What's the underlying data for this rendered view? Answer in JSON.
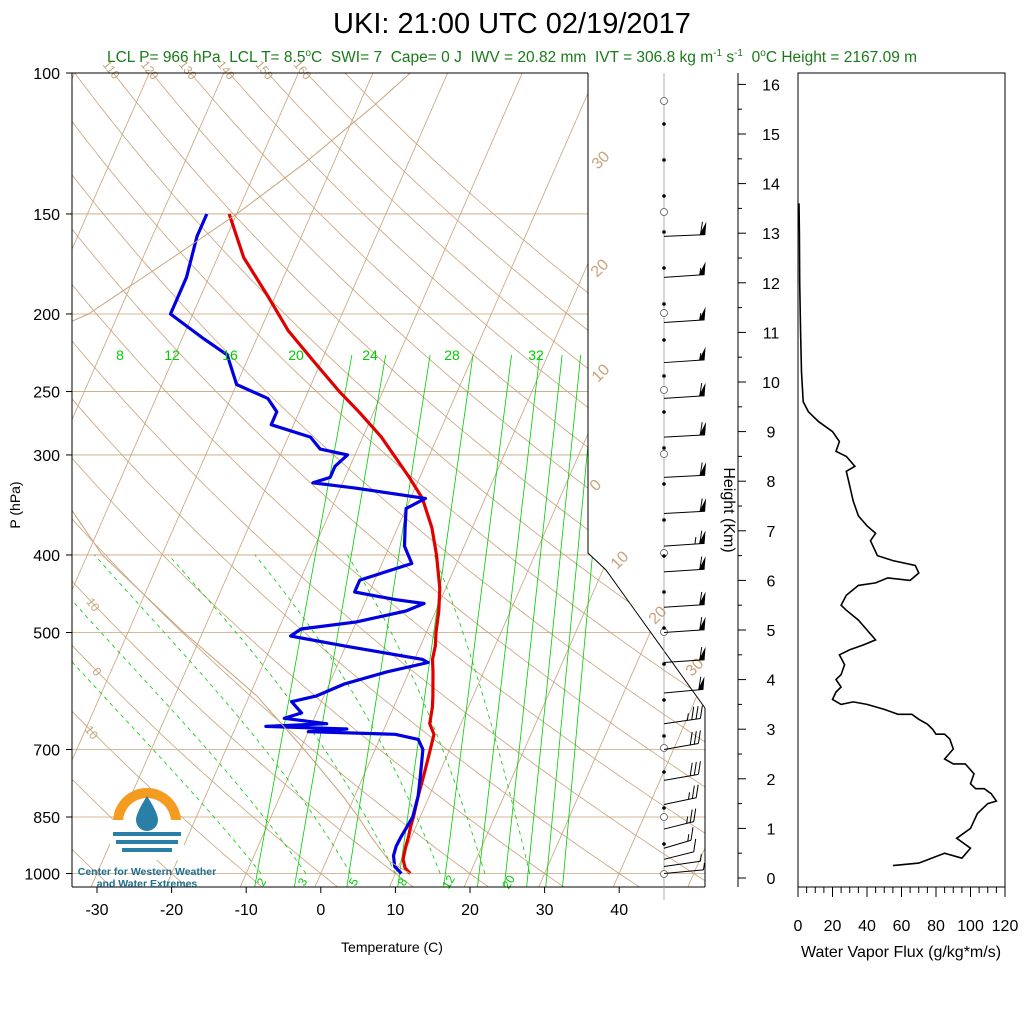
{
  "header": {
    "title": "UKI: 21:00 UTC 02/19/2017",
    "subtitle_parts": [
      "LCL P= 966 hPa",
      "LCL T= 8.5",
      "o",
      "C",
      "SWI= 7",
      "Cape= 0 J",
      "IWV = 20.82 mm",
      "IVT = 306.8 kg m",
      "-1",
      " s",
      "-1",
      "0",
      "o",
      "C Height = 2167.09 m"
    ]
  },
  "logo": {
    "line1": "Center for Western Weather",
    "line2": "and Water Extremes",
    "colors": {
      "sun": "#f39c1f",
      "water": "#2a7fa6"
    }
  },
  "colors": {
    "temperature": "#e00000",
    "dewpoint": "#0000e0",
    "dry_adiabat": "#c8a27a",
    "isotherm": "#c8a27a",
    "mixing_ratio": "#00cc00",
    "parcel": "#c8a27a",
    "subtitle": "#1a7a1a",
    "flux": "#000000"
  },
  "chart_data": [
    {
      "type": "line",
      "name": "skew-t",
      "xlabel": "Temperature (C)",
      "ylabel": "P (hPa)",
      "x_ticks": [
        -30,
        -20,
        -10,
        0,
        10,
        20,
        30,
        40
      ],
      "y_ticks": [
        100,
        150,
        200,
        250,
        300,
        400,
        500,
        700,
        850,
        1000
      ],
      "xlim": [
        -33,
        45
      ],
      "ylim": [
        1050,
        100
      ],
      "y_scale": "log",
      "skew_degC_per_decade": 47,
      "dry_adiabat_labels": [
        "50",
        "60",
        "70",
        "80",
        "90",
        "100",
        "110",
        "120",
        "130",
        "140",
        "150",
        "160",
        "40",
        "30",
        "20",
        "10",
        "0",
        "10",
        "20"
      ],
      "dry_adiabat_temps_C": [
        50,
        60,
        70,
        80,
        90,
        100,
        110,
        120,
        130,
        140,
        150,
        160,
        40,
        30,
        20,
        10,
        0,
        -10,
        -20
      ],
      "isotherm_labels": [
        "30",
        "20",
        "10",
        "0",
        "10",
        "20",
        "30"
      ],
      "isotherm_label_temps": [
        30,
        20,
        10,
        0,
        -10,
        -20,
        -30
      ],
      "mixing_ratio_top_labels": [
        "8",
        "12",
        "16",
        "20",
        "24",
        "28",
        "32"
      ],
      "mixing_ratio_bottom_labels": [
        "2",
        "3",
        "5",
        "8",
        "12",
        "20"
      ],
      "mixing_ratio_values": [
        2,
        3,
        5,
        8,
        12,
        16,
        20,
        24,
        28,
        32
      ],
      "series": [
        {
          "name": "temperature",
          "points": [
            [
              1000,
              12
            ],
            [
              985,
              11
            ],
            [
              960,
              10.2
            ],
            [
              925,
              9.8
            ],
            [
              900,
              9.6
            ],
            [
              875,
              9.3
            ],
            [
              850,
              9.1
            ],
            [
              800,
              8.5
            ],
            [
              750,
              8.0
            ],
            [
              700,
              7.4
            ],
            [
              670,
              7.0
            ],
            [
              650,
              5.8
            ],
            [
              620,
              5.2
            ],
            [
              600,
              4.6
            ],
            [
              560,
              3.2
            ],
            [
              540,
              2.4
            ],
            [
              520,
              2.0
            ],
            [
              500,
              1.3
            ],
            [
              470,
              0.4
            ],
            [
              440,
              -0.8
            ],
            [
              400,
              -3.2
            ],
            [
              370,
              -5.4
            ],
            [
              340,
              -8.4
            ],
            [
              320,
              -11.4
            ],
            [
              300,
              -14.8
            ],
            [
              285,
              -17.5
            ],
            [
              265,
              -22
            ],
            [
              250,
              -25.8
            ],
            [
              230,
              -30.8
            ],
            [
              210,
              -36.2
            ],
            [
              190,
              -41
            ],
            [
              170,
              -46.5
            ],
            [
              150,
              -51
            ]
          ]
        },
        {
          "name": "dewpoint",
          "points": [
            [
              1000,
              10.8
            ],
            [
              980,
              9.5
            ],
            [
              950,
              8.7
            ],
            [
              925,
              8.5
            ],
            [
              900,
              8.6
            ],
            [
              875,
              8.8
            ],
            [
              850,
              9
            ],
            [
              800,
              8.5
            ],
            [
              750,
              7.5
            ],
            [
              700,
              6.4
            ],
            [
              680,
              5.2
            ],
            [
              670,
              1.8
            ],
            [
              665,
              -10
            ],
            [
              660,
              -5
            ],
            [
              655,
              -16
            ],
            [
              650,
              -8
            ],
            [
              640,
              -14
            ],
            [
              630,
              -12
            ],
            [
              610,
              -14
            ],
            [
              600,
              -11
            ],
            [
              580,
              -8
            ],
            [
              560,
              -3
            ],
            [
              545,
              2
            ],
            [
              540,
              1
            ],
            [
              520,
              -10
            ],
            [
              505,
              -18
            ],
            [
              495,
              -17
            ],
            [
              485,
              -10
            ],
            [
              470,
              -4
            ],
            [
              460,
              -2
            ],
            [
              455,
              -6
            ],
            [
              445,
              -12
            ],
            [
              430,
              -12
            ],
            [
              410,
              -6
            ],
            [
              390,
              -8
            ],
            [
              370,
              -9
            ],
            [
              350,
              -10
            ],
            [
              340,
              -8
            ],
            [
              330,
              -18
            ],
            [
              325,
              -24
            ],
            [
              320,
              -22
            ],
            [
              310,
              -22
            ],
            [
              300,
              -21
            ],
            [
              295,
              -25
            ],
            [
              285,
              -27
            ],
            [
              275,
              -33
            ],
            [
              265,
              -33
            ],
            [
              255,
              -35
            ],
            [
              245,
              -40
            ],
            [
              225,
              -43
            ],
            [
              215,
              -47
            ],
            [
              200,
              -53
            ],
            [
              180,
              -53
            ],
            [
              160,
              -54
            ],
            [
              150,
              -54
            ]
          ]
        },
        {
          "name": "parcel",
          "points": [
            [
              1000,
              12
            ],
            [
              966,
              8.5
            ],
            [
              900,
              4.6
            ],
            [
              850,
              1.7
            ],
            [
              800,
              -1.6
            ],
            [
              700,
              -9.5
            ],
            [
              600,
              -19
            ],
            [
              500,
              -32.5
            ],
            [
              400,
              -48
            ],
            [
              300,
              -63
            ],
            [
              250,
              -70
            ],
            [
              225,
              -74
            ],
            [
              200,
              -64
            ],
            [
              170,
              -56
            ],
            [
              150,
              -50
            ],
            [
              130,
              -44
            ],
            [
              110,
              -38
            ],
            [
              100,
              -35
            ]
          ]
        }
      ]
    },
    {
      "type": "line",
      "name": "water-vapor-flux",
      "xlabel": "Water Vapor Flux (g/kg*m/s)",
      "ylabel": "Height (Km)",
      "x_ticks": [
        0,
        20,
        40,
        60,
        80,
        100,
        120
      ],
      "y_ticks": [
        0,
        1,
        2,
        3,
        4,
        5,
        6,
        7,
        8,
        9,
        10,
        11,
        12,
        13,
        14,
        15,
        16
      ],
      "xlim": [
        0,
        120
      ],
      "ylim": [
        -0.2,
        16.3
      ],
      "series": [
        {
          "name": "flux",
          "points": [
            [
              55,
              0.25
            ],
            [
              70,
              0.3
            ],
            [
              85,
              0.5
            ],
            [
              95,
              0.4
            ],
            [
              100,
              0.6
            ],
            [
              92,
              0.8
            ],
            [
              100,
              1.0
            ],
            [
              104,
              1.3
            ],
            [
              110,
              1.5
            ],
            [
              115,
              1.55
            ],
            [
              112,
              1.7
            ],
            [
              108,
              1.8
            ],
            [
              103,
              1.8
            ],
            [
              100,
              1.9
            ],
            [
              102,
              2.1
            ],
            [
              97,
              2.3
            ],
            [
              90,
              2.3
            ],
            [
              85,
              2.4
            ],
            [
              90,
              2.6
            ],
            [
              88,
              2.8
            ],
            [
              85,
              2.9
            ],
            [
              80,
              2.9
            ],
            [
              78,
              3.0
            ],
            [
              75,
              3.1
            ],
            [
              70,
              3.2
            ],
            [
              66,
              3.3
            ],
            [
              58,
              3.3
            ],
            [
              50,
              3.4
            ],
            [
              40,
              3.5
            ],
            [
              32,
              3.55
            ],
            [
              25,
              3.5
            ],
            [
              20,
              3.6
            ],
            [
              22,
              3.75
            ],
            [
              25,
              3.85
            ],
            [
              22,
              4.0
            ],
            [
              25,
              4.1
            ],
            [
              27,
              4.3
            ],
            [
              24,
              4.5
            ],
            [
              30,
              4.6
            ],
            [
              38,
              4.7
            ],
            [
              45,
              4.8
            ],
            [
              40,
              5.0
            ],
            [
              35,
              5.2
            ],
            [
              28,
              5.4
            ],
            [
              25,
              5.5
            ],
            [
              28,
              5.7
            ],
            [
              35,
              5.9
            ],
            [
              45,
              5.95
            ],
            [
              52,
              6.05
            ],
            [
              65,
              6.0
            ],
            [
              70,
              6.15
            ],
            [
              68,
              6.3
            ],
            [
              55,
              6.4
            ],
            [
              46,
              6.5
            ],
            [
              42,
              6.8
            ],
            [
              45,
              6.95
            ],
            [
              40,
              7.1
            ],
            [
              35,
              7.3
            ],
            [
              32,
              7.6
            ],
            [
              30,
              7.9
            ],
            [
              28,
              8.2
            ],
            [
              33,
              8.3
            ],
            [
              28,
              8.5
            ],
            [
              22,
              8.6
            ],
            [
              24,
              8.8
            ],
            [
              20,
              9.0
            ],
            [
              12,
              9.2
            ],
            [
              6,
              9.4
            ],
            [
              3,
              9.6
            ],
            [
              2,
              10.2
            ],
            [
              1.5,
              11
            ],
            [
              1,
              12
            ],
            [
              0.8,
              13
            ],
            [
              0.6,
              13.6
            ]
          ]
        }
      ]
    },
    {
      "type": "scatter",
      "name": "wind-barbs",
      "pressures_hPa": [
        1000,
        980,
        960,
        930,
        880,
        820,
        765,
        700,
        650,
        595,
        545,
        500,
        465,
        420,
        390,
        355,
        320,
        285,
        255,
        230,
        205,
        180,
        160
      ],
      "knots": [
        5,
        5,
        10,
        15,
        25,
        25,
        30,
        30,
        35,
        60,
        60,
        60,
        60,
        60,
        65,
        60,
        60,
        60,
        60,
        55,
        55,
        55,
        60
      ],
      "direction_deg": [
        250,
        240,
        225,
        220,
        225,
        230,
        235,
        235,
        240,
        250,
        255,
        255,
        255,
        255,
        255,
        258,
        258,
        258,
        255,
        255,
        255,
        255,
        260
      ]
    }
  ]
}
